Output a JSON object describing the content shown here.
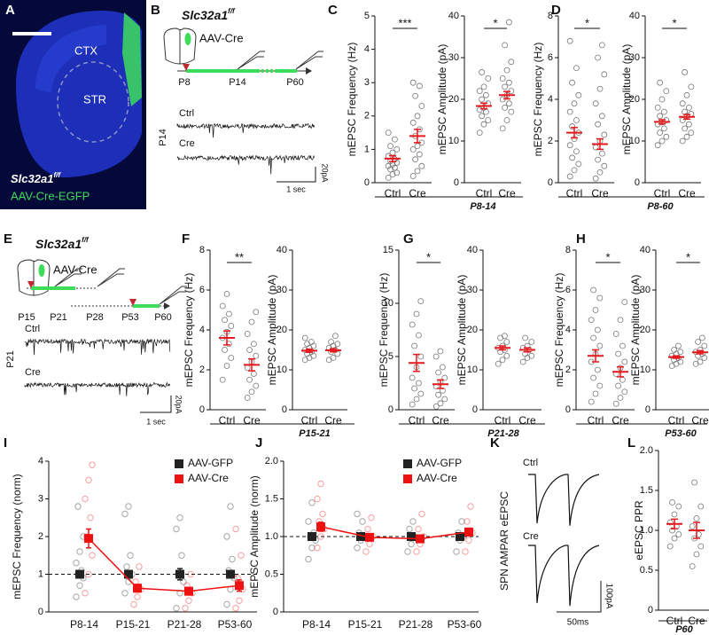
{
  "panel_a": {
    "letter": "A",
    "regions": [
      "CTX",
      "STR"
    ],
    "genotype": "Slc32a1",
    "genotype_sup": "f/f",
    "virus": "AAV-Cre-EGFP"
  },
  "panel_b": {
    "letter": "B",
    "genotype": "Slc32a1",
    "genotype_sup": "f/f",
    "virus": "AAV-Cre",
    "timeline": [
      "P8",
      "P14",
      "P60"
    ],
    "age": "P14",
    "traces": [
      "Ctrl",
      "Cre"
    ],
    "scale_current": "20pA",
    "scale_time": "1 sec"
  },
  "panel_e": {
    "letter": "E",
    "genotype": "Slc32a1",
    "genotype_sup": "f/f",
    "virus": "AAV-Cre",
    "timeline": [
      "P15",
      "P21",
      "P28",
      "P53",
      "P60"
    ],
    "age": "P21",
    "traces": [
      "Ctrl",
      "Cre"
    ],
    "scale_current": "20pA",
    "scale_time": "1 sec"
  },
  "panel_k": {
    "letter": "K",
    "ylabel": "SPN AMPAR eEPSC",
    "traces": [
      "Ctrl",
      "Cre"
    ],
    "scale_current": "100pA",
    "scale_time": "50ms"
  },
  "dot_panels": [
    {
      "letter": "C",
      "period": "P8-14",
      "charts": [
        {
          "ylabel": "mEPSC Frequency (Hz)",
          "ylim": [
            0,
            5
          ],
          "yticks": [
            0,
            1,
            2,
            3,
            4,
            5
          ],
          "categories": [
            "Ctrl",
            "Cre"
          ],
          "significance": "***",
          "groups": [
            {
              "mean": 0.72,
              "sem": 0.09,
              "points": [
                0.15,
                0.25,
                0.3,
                0.4,
                0.45,
                0.5,
                0.55,
                0.6,
                0.65,
                0.7,
                0.8,
                0.9,
                1.0,
                1.1,
                1.3,
                1.5
              ]
            },
            {
              "mean": 1.4,
              "sem": 0.2,
              "points": [
                0.2,
                0.35,
                0.5,
                0.7,
                0.85,
                1.0,
                1.1,
                1.2,
                1.4,
                1.6,
                1.8,
                2.0,
                2.3,
                2.6,
                2.9,
                3.0
              ]
            }
          ]
        },
        {
          "ylabel": "mEPSC Amplitude (pA)",
          "ylim": [
            0,
            40
          ],
          "yticks": [
            0,
            10,
            20,
            30,
            40
          ],
          "categories": [
            "Ctrl",
            "Cre"
          ],
          "significance": "*",
          "groups": [
            {
              "mean": 18.4,
              "sem": 0.7,
              "points": [
                12,
                14,
                15,
                16,
                17,
                17.5,
                18,
                19,
                20,
                21,
                22,
                23,
                25,
                26.5
              ]
            },
            {
              "mean": 21,
              "sem": 0.9,
              "points": [
                13,
                15,
                17,
                18,
                19,
                20,
                21,
                22,
                23,
                24,
                25,
                27,
                29,
                33,
                38.5
              ]
            }
          ]
        }
      ]
    },
    {
      "letter": "D",
      "period": "P8-60",
      "charts": [
        {
          "ylabel": "mEPSC Frequency (Hz)",
          "ylim": [
            0,
            8
          ],
          "yticks": [
            0,
            2,
            4,
            6,
            8
          ],
          "categories": [
            "Ctrl",
            "Cre"
          ],
          "significance": "*",
          "groups": [
            {
              "mean": 2.4,
              "sem": 0.25,
              "points": [
                0.3,
                0.6,
                0.9,
                1.2,
                1.5,
                1.8,
                2.1,
                2.4,
                2.7,
                3,
                3.4,
                3.8,
                4.2,
                4.8,
                5.5,
                6.8
              ]
            },
            {
              "mean": 1.85,
              "sem": 0.25,
              "points": [
                0.2,
                0.5,
                0.8,
                1.1,
                1.4,
                1.7,
                2,
                2.3,
                2.8,
                3.2,
                3.8,
                4.5,
                5.2,
                6,
                6.6
              ]
            }
          ]
        },
        {
          "ylabel": "mEPSC Amplitude (pA)",
          "ylim": [
            0,
            40
          ],
          "yticks": [
            0,
            10,
            20,
            30,
            40
          ],
          "categories": [
            "Ctrl",
            "Cre"
          ],
          "significance": "*",
          "groups": [
            {
              "mean": 14.6,
              "sem": 0.5,
              "points": [
                9,
                10,
                11,
                12,
                13,
                14,
                14.5,
                15,
                16,
                17,
                18,
                20,
                22,
                24
              ]
            },
            {
              "mean": 15.8,
              "sem": 0.55,
              "points": [
                10,
                11,
                12,
                13,
                14,
                15,
                16,
                16.5,
                17,
                18,
                19,
                21,
                23,
                26.5
              ]
            }
          ]
        }
      ]
    },
    {
      "letter": "F",
      "period": "P15-21",
      "charts": [
        {
          "ylabel": "mEPSC Frequency (Hz)",
          "ylim": [
            0,
            8
          ],
          "yticks": [
            0,
            2,
            4,
            6,
            8
          ],
          "categories": [
            "Ctrl",
            "Cre"
          ],
          "significance": "**",
          "groups": [
            {
              "mean": 3.6,
              "sem": 0.35,
              "points": [
                1.5,
                2.2,
                2.6,
                3,
                3.3,
                3.6,
                3.9,
                4.2,
                4.5,
                4.8,
                5.2,
                5.8
              ]
            },
            {
              "mean": 2.25,
              "sem": 0.3,
              "points": [
                0.6,
                0.9,
                1.2,
                1.5,
                1.8,
                2.1,
                2.4,
                2.7,
                3,
                3.3,
                3.8,
                4.4,
                4.9
              ]
            }
          ]
        },
        {
          "ylabel": "mEPSC Amplitude (pA)",
          "ylim": [
            0,
            40
          ],
          "yticks": [
            0,
            10,
            20,
            30,
            40
          ],
          "categories": [
            "Ctrl",
            "Cre"
          ],
          "groups": [
            {
              "mean": 14.8,
              "sem": 0.4,
              "points": [
                12.5,
                13,
                13.5,
                14,
                14.5,
                15,
                15.5,
                16,
                16.5,
                17,
                18
              ]
            },
            {
              "mean": 14.9,
              "sem": 0.4,
              "points": [
                12.5,
                13,
                14,
                14.5,
                15,
                15.5,
                16,
                16.5,
                17,
                18.5
              ]
            }
          ]
        }
      ]
    },
    {
      "letter": "G",
      "period": "P21-28",
      "charts": [
        {
          "ylabel": "mEPSC Frequency (Hz)",
          "ylim": [
            0,
            15
          ],
          "yticks": [
            0,
            5,
            10,
            15
          ],
          "categories": [
            "Ctrl",
            "Cre"
          ],
          "significance": "*",
          "groups": [
            {
              "mean": 4.4,
              "sem": 0.8,
              "points": [
                0.5,
                1,
                1.5,
                2,
                2.5,
                3,
                4,
                5,
                6,
                7,
                8,
                9,
                10.2
              ]
            },
            {
              "mean": 2.4,
              "sem": 0.4,
              "points": [
                0.3,
                0.6,
                1,
                1.4,
                1.8,
                2.2,
                2.6,
                3,
                3.5,
                4,
                5,
                5.5
              ]
            }
          ]
        },
        {
          "ylabel": "mEPSC Amplitude (pA)",
          "ylim": [
            0,
            40
          ],
          "yticks": [
            0,
            10,
            20,
            30,
            40
          ],
          "categories": [
            "Ctrl",
            "Cre"
          ],
          "groups": [
            {
              "mean": 15.5,
              "sem": 0.5,
              "points": [
                11.5,
                12.5,
                13.5,
                14.5,
                15,
                15.5,
                16,
                17,
                18,
                18.5
              ]
            },
            {
              "mean": 15,
              "sem": 0.5,
              "points": [
                12,
                13,
                13.5,
                14,
                15,
                15.5,
                16,
                17,
                18
              ]
            }
          ]
        }
      ]
    },
    {
      "letter": "H",
      "period": "P53-60",
      "charts": [
        {
          "ylabel": "mEPSC Frequency (Hz)",
          "ylim": [
            0,
            8
          ],
          "yticks": [
            0,
            2,
            4,
            6,
            8
          ],
          "categories": [
            "Ctrl",
            "Cre"
          ],
          "significance": "*",
          "groups": [
            {
              "mean": 2.7,
              "sem": 0.3,
              "points": [
                0.4,
                0.8,
                1.2,
                1.6,
                2,
                2.4,
                2.8,
                3.2,
                3.6,
                4,
                4.5,
                5,
                5.6,
                6
              ]
            },
            {
              "mean": 1.9,
              "sem": 0.25,
              "points": [
                0.3,
                0.6,
                0.9,
                1.2,
                1.5,
                1.8,
                2.1,
                2.4,
                2.8,
                3.2,
                3.8,
                4.5,
                5.4
              ]
            }
          ]
        },
        {
          "ylabel": "mEPSC Amplitude (pA)",
          "ylim": [
            0,
            40
          ],
          "yticks": [
            0,
            10,
            20,
            30,
            40
          ],
          "categories": [
            "Ctrl",
            "Cre"
          ],
          "significance": "*",
          "groups": [
            {
              "mean": 13.2,
              "sem": 0.3,
              "points": [
                11,
                11.5,
                12,
                12.5,
                13,
                13.5,
                14,
                14.5,
                15,
                16
              ]
            },
            {
              "mean": 14.4,
              "sem": 0.4,
              "points": [
                11.5,
                12,
                13,
                13.5,
                14,
                14.5,
                15,
                16,
                17,
                18
              ]
            }
          ]
        }
      ]
    },
    {
      "letter": "L",
      "period": "P60",
      "charts": [
        {
          "ylabel": "eEPSC PPR",
          "ylim": [
            0,
            2
          ],
          "yticks": [
            0,
            0.5,
            {
              "value": 1,
              "label": "1.0"
            },
            1.5,
            {
              "value": 2,
              "label": "2.0"
            }
          ],
          "categories": [
            "Ctrl",
            "Cre"
          ],
          "groups": [
            {
              "mean": 1.08,
              "sem": 0.06,
              "points": [
                0.8,
                0.9,
                0.95,
                1,
                1.05,
                1.1,
                1.2,
                1.3,
                1.35
              ]
            },
            {
              "mean": 1.0,
              "sem": 0.1,
              "points": [
                0.55,
                0.7,
                0.8,
                0.9,
                0.95,
                1.05,
                1.15,
                1.3,
                1.6
              ]
            }
          ]
        }
      ]
    }
  ],
  "line_panels": [
    {
      "letter": "I",
      "ylabel": "mEPSC Frequency (norm)",
      "ylim": [
        0,
        4
      ],
      "yticks": [
        0,
        1,
        2,
        3,
        4
      ],
      "reference": 1,
      "categories": [
        "P8-14",
        "P15-21",
        "P21-28",
        "P53-60"
      ],
      "series": [
        {
          "name": "AAV-GFP",
          "color": "#222222",
          "connect": false,
          "means": [
            1,
            1,
            1,
            1
          ],
          "sems": [
            0.1,
            0.1,
            0.15,
            0.1
          ],
          "points": [
            [
              0.4,
              0.7,
              0.9,
              1,
              1.1,
              1.3,
              1.6,
              2,
              2.8
            ],
            [
              0.5,
              0.8,
              1,
              1.2,
              1.5,
              2.6,
              2.8
            ],
            [
              0.1,
              0.5,
              0.8,
              1,
              1.5,
              2.2,
              2.5
            ],
            [
              0.2,
              0.6,
              0.9,
              1.1,
              1.4,
              2,
              2.8
            ]
          ]
        },
        {
          "name": "AAV-Cre",
          "color": "#ee1111",
          "connect": true,
          "means": [
            1.95,
            0.63,
            0.55,
            0.7
          ],
          "sems": [
            0.25,
            0.1,
            0.1,
            0.15
          ],
          "points": [
            [
              0.5,
              1,
              1.5,
              2,
              2.5,
              3,
              3.5,
              3.9
            ],
            [
              0.2,
              0.4,
              0.6,
              0.8,
              1.2
            ],
            [
              0.1,
              0.3,
              0.5,
              0.7,
              1
            ],
            [
              0.1,
              0.3,
              0.6,
              0.9,
              1.5,
              2.2
            ]
          ]
        }
      ]
    },
    {
      "letter": "J",
      "ylabel": "mEPSC Amplitude (norm)",
      "ylim": [
        0,
        2
      ],
      "yticks": [
        0,
        0.5,
        {
          "value": 1,
          "label": "1.0"
        },
        1.5,
        {
          "value": 2,
          "label": "2.0"
        }
      ],
      "reference": 1,
      "categories": [
        "P8-14",
        "P15-21",
        "P21-28",
        "P53-60"
      ],
      "series": [
        {
          "name": "AAV-GFP",
          "color": "#222222",
          "connect": false,
          "means": [
            1,
            1,
            1,
            1
          ],
          "sems": [
            0.04,
            0.03,
            0.04,
            0.04
          ],
          "points": [
            [
              0.7,
              0.85,
              0.95,
              1,
              1.05,
              1.2,
              1.45
            ],
            [
              0.85,
              0.95,
              1,
              1.05,
              1.2,
              1.3
            ],
            [
              0.8,
              0.9,
              1,
              1.1,
              1.2
            ],
            [
              0.8,
              0.95,
              1,
              1.05,
              1.2
            ]
          ]
        },
        {
          "name": "AAV-Cre",
          "color": "#ee1111",
          "connect": true,
          "means": [
            1.13,
            0.99,
            0.97,
            1.06
          ],
          "sems": [
            0.06,
            0.04,
            0.05,
            0.05
          ],
          "points": [
            [
              0.85,
              1,
              1.1,
              1.2,
              1.3,
              1.5,
              1.7
            ],
            [
              0.8,
              0.9,
              1,
              1.1,
              1.25
            ],
            [
              0.8,
              0.9,
              1,
              1.1,
              1.3
            ],
            [
              0.8,
              0.95,
              1.05,
              1.2,
              1.4
            ]
          ]
        }
      ]
    }
  ]
}
